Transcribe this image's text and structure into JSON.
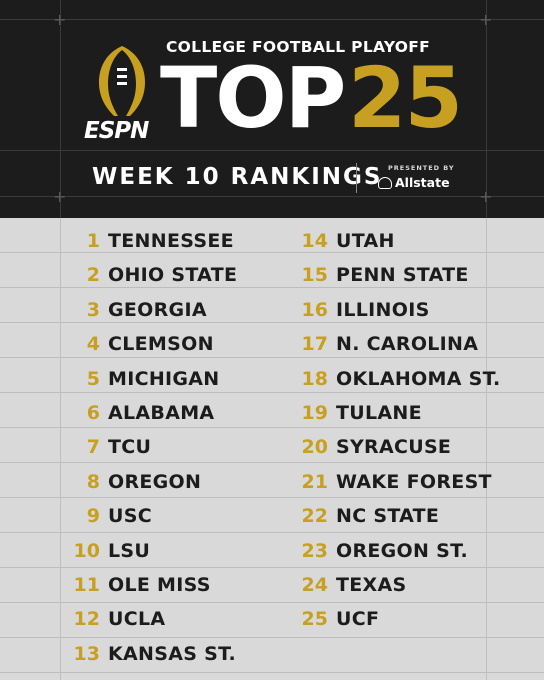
{
  "header": {
    "brand": "ESPN",
    "subtitle": "COLLEGE FOOTBALL PLAYOFF",
    "title_main": "TOP",
    "title_number": "25",
    "week_label": "WEEK 10 RANKINGS",
    "presented_by": "PRESENTED BY",
    "sponsor": "Allstate"
  },
  "rankings_left": [
    {
      "rank": "1",
      "team": "TENNESSEE"
    },
    {
      "rank": "2",
      "team": "OHIO STATE"
    },
    {
      "rank": "3",
      "team": "GEORGIA"
    },
    {
      "rank": "4",
      "team": "CLEMSON"
    },
    {
      "rank": "5",
      "team": "MICHIGAN"
    },
    {
      "rank": "6",
      "team": "ALABAMA"
    },
    {
      "rank": "7",
      "team": "TCU"
    },
    {
      "rank": "8",
      "team": "OREGON"
    },
    {
      "rank": "9",
      "team": "USC"
    },
    {
      "rank": "10",
      "team": "LSU"
    },
    {
      "rank": "11",
      "team": "OLE MISS"
    },
    {
      "rank": "12",
      "team": "UCLA"
    },
    {
      "rank": "13",
      "team": "KANSAS ST."
    }
  ],
  "rankings_right": [
    {
      "rank": "14",
      "team": "UTAH"
    },
    {
      "rank": "15",
      "team": "PENN STATE"
    },
    {
      "rank": "16",
      "team": "ILLINOIS"
    },
    {
      "rank": "17",
      "team": "N. CAROLINA"
    },
    {
      "rank": "18",
      "team": "OKLAHOMA ST."
    },
    {
      "rank": "19",
      "team": "TULANE"
    },
    {
      "rank": "20",
      "team": "SYRACUSE"
    },
    {
      "rank": "21",
      "team": "WAKE FOREST"
    },
    {
      "rank": "22",
      "team": "NC STATE"
    },
    {
      "rank": "23",
      "team": "OREGON ST."
    },
    {
      "rank": "24",
      "team": "TEXAS"
    },
    {
      "rank": "25",
      "team": "UCF"
    }
  ],
  "colors": {
    "header_bg": "#1c1c1c",
    "gold": "#c8a021",
    "body_bg": "#d9d9d9",
    "text_dark": "#1c1c1c"
  },
  "icons": [
    "cfp-trophy-icon",
    "allstate-hands-icon"
  ]
}
